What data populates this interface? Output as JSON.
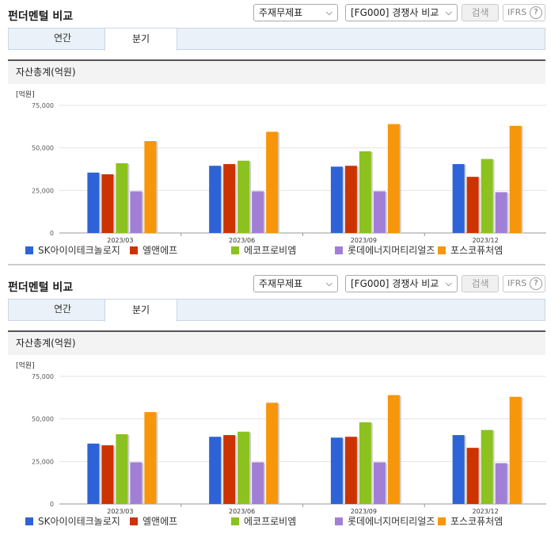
{
  "header": {
    "title": "펀더멘털 비교",
    "statement_select": "주재무제표",
    "peer_select": "[FG000] 경쟁사 비교",
    "search_label": "검색",
    "ifrs_label": "IFRS",
    "help_glyph": "?"
  },
  "tabs": [
    {
      "label": "연간",
      "active": false
    },
    {
      "label": "분기",
      "active": true
    }
  ],
  "section_title": "자산총계(억원)",
  "colors": {
    "sk": "#2d63d6",
    "lnf": "#cc3300",
    "ecopro": "#8cc21f",
    "lotte": "#a27fd6",
    "posco": "#f7960a"
  },
  "chart_data": {
    "type": "bar",
    "unit_label": "[억원]",
    "categories": [
      "2023/03",
      "2023/06",
      "2023/09",
      "2023/12"
    ],
    "ylim": [
      0,
      75000
    ],
    "yticks": [
      "0",
      "25,000",
      "50,000",
      "75,000"
    ],
    "yticks_values": [
      0,
      25000,
      50000,
      75000
    ],
    "series": [
      {
        "name": "SK아이이테크놀로지",
        "color": "#2d63d6",
        "values": [
          35500,
          39500,
          39000,
          40500
        ]
      },
      {
        "name": "엘앤에프",
        "color": "#cc3300",
        "values": [
          34500,
          40500,
          39500,
          33000
        ]
      },
      {
        "name": "에코프로비엠",
        "color": "#8cc21f",
        "values": [
          41000,
          42500,
          48000,
          43500
        ]
      },
      {
        "name": "롯데에너지머티리얼즈",
        "color": "#a27fd6",
        "values": [
          24500,
          24500,
          24500,
          24000
        ]
      },
      {
        "name": "포스코퓨처엠",
        "color": "#f7960a",
        "values": [
          54000,
          59500,
          64000,
          63000
        ]
      }
    ]
  }
}
